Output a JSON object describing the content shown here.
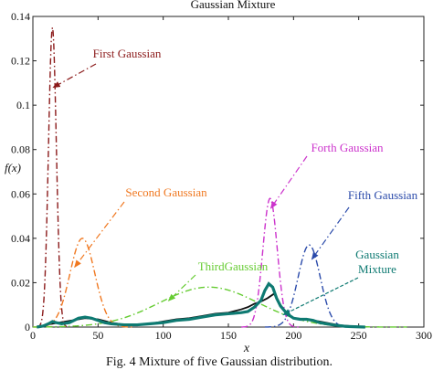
{
  "figure": {
    "caption": "Fig. 4 Mixture of five Gaussian distribution."
  },
  "chart_data": {
    "type": "line",
    "title": "Gaussian Mixture",
    "xlabel": "x",
    "ylabel": "f(x)",
    "xlim": [
      0,
      300
    ],
    "ylim": [
      0,
      0.14
    ],
    "xticks": [
      "0",
      "50",
      "100",
      "150",
      "200",
      "250",
      "300"
    ],
    "yticks": [
      "0",
      "0.02",
      "0.04",
      "0.06",
      "0.08",
      "0.1",
      "0.12",
      "0.14"
    ],
    "grid": false,
    "series": [
      {
        "name": "First Gaussian",
        "color": "#8b1a1a",
        "style": "dashdot",
        "peak_x": 15,
        "peak_y": 0.135,
        "sd": 3.0
      },
      {
        "name": "Second Gaussian",
        "color": "#f07820",
        "style": "dashdot",
        "peak_x": 38,
        "peak_y": 0.04,
        "sd": 9.5
      },
      {
        "name": "ThirdGaussian",
        "color": "#66cc33",
        "style": "dashdot",
        "peak_x": 135,
        "peak_y": 0.018,
        "sd": 38
      },
      {
        "name": "Forth Gaussian",
        "color": "#cc33cc",
        "style": "dashdot",
        "peak_x": 182,
        "peak_y": 0.058,
        "sd": 5.5
      },
      {
        "name": "Fifth Gaussian",
        "color": "#2a4aaa",
        "style": "dashdot",
        "peak_x": 212,
        "peak_y": 0.037,
        "sd": 8.5
      },
      {
        "name": "Gaussian Mixture",
        "color": "#0e7a72",
        "style": "solid",
        "label_lines": [
          "Gaussian",
          "Mixture"
        ]
      }
    ],
    "mixture_points": {
      "x": [
        3,
        8,
        12,
        15,
        18,
        22,
        28,
        35,
        40,
        45,
        50,
        55,
        60,
        70,
        80,
        90,
        100,
        110,
        120,
        130,
        140,
        150,
        160,
        165,
        170,
        175,
        178,
        181,
        184,
        187,
        190,
        195,
        200,
        205,
        210,
        215,
        220,
        230,
        240,
        255
      ],
      "y": [
        0.0,
        0.0005,
        0.0015,
        0.0025,
        0.002,
        0.0015,
        0.002,
        0.004,
        0.0045,
        0.004,
        0.003,
        0.002,
        0.0015,
        0.001,
        0.001,
        0.0015,
        0.002,
        0.003,
        0.0035,
        0.0045,
        0.0055,
        0.006,
        0.0065,
        0.007,
        0.009,
        0.012,
        0.0165,
        0.0195,
        0.018,
        0.013,
        0.0095,
        0.006,
        0.004,
        0.0035,
        0.0035,
        0.003,
        0.002,
        0.001,
        0.0003,
        0.0
      ]
    },
    "empirical_points": {
      "color": "#111111",
      "x": [
        3,
        10,
        15,
        20,
        30,
        40,
        50,
        60,
        70,
        80,
        90,
        100,
        110,
        120,
        130,
        140,
        150,
        160,
        165,
        170,
        175,
        180,
        185,
        190,
        195,
        200,
        210,
        220,
        235,
        255
      ],
      "y": [
        0.0,
        0.001,
        0.0015,
        0.002,
        0.003,
        0.004,
        0.0035,
        0.002,
        0.001,
        0.001,
        0.0015,
        0.0025,
        0.0035,
        0.004,
        0.005,
        0.006,
        0.0065,
        0.008,
        0.009,
        0.0105,
        0.0115,
        0.013,
        0.015,
        0.01,
        0.0055,
        0.004,
        0.0035,
        0.0025,
        0.0008,
        0.0
      ]
    }
  }
}
